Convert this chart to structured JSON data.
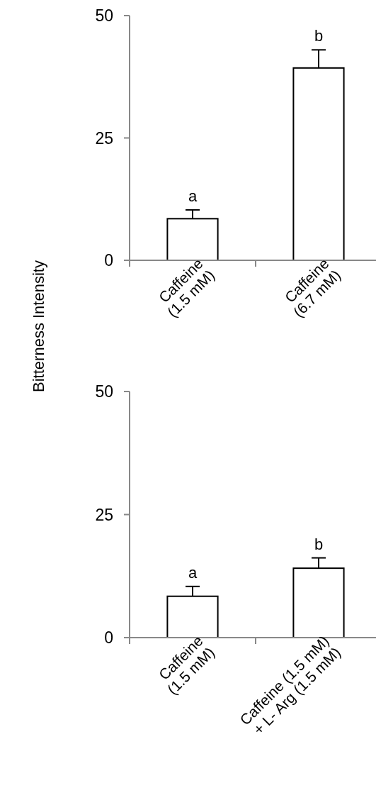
{
  "chart_data": [
    {
      "type": "bar",
      "ylabel": "Bitterness Intensity",
      "categories": [
        "Caffeine\n(1.5 mM)",
        "Caffeine\n(6.7 mM)"
      ],
      "values": [
        8.5,
        39.3
      ],
      "errors": [
        1.8,
        3.7
      ],
      "color": "#ffffff",
      "ylim": [
        0,
        50
      ],
      "yticks": [
        0,
        25,
        50
      ],
      "grid": false,
      "annotations": [
        "a",
        "b"
      ]
    },
    {
      "type": "bar",
      "categories": [
        "Caffeine\n(1.5 mM)",
        "Caffeine (1.5 mM)\n+ L- Arg (1.5 mM)"
      ],
      "values": [
        8.4,
        14.1
      ],
      "errors": [
        2,
        2.1
      ],
      "color": "#ffffff",
      "ylim": [
        0,
        50
      ],
      "yticks": [
        0,
        25,
        50
      ],
      "grid": false,
      "annotations": [
        "a",
        "b"
      ]
    }
  ]
}
